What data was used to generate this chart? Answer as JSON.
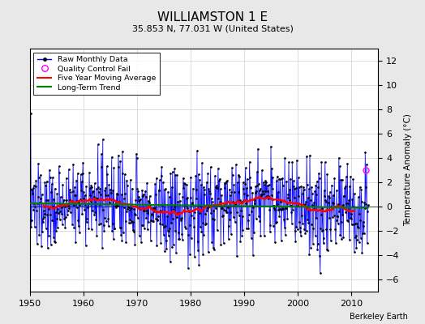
{
  "title": "WILLIAMSTON 1 E",
  "subtitle": "35.853 N, 77.031 W (United States)",
  "ylabel": "Temperature Anomaly (°C)",
  "credit": "Berkeley Earth",
  "xlim": [
    1950,
    2015
  ],
  "ylim": [
    -7,
    13
  ],
  "yticks": [
    -6,
    -4,
    -2,
    0,
    2,
    4,
    6,
    8,
    10,
    12
  ],
  "xticks": [
    1950,
    1960,
    1970,
    1980,
    1990,
    2000,
    2010
  ],
  "background_color": "#e8e8e8",
  "plot_bg_color": "#ffffff",
  "seed": 137,
  "noise_scale": 1.8,
  "qc_fail_x": 2012.75,
  "qc_fail_y": 3.0
}
